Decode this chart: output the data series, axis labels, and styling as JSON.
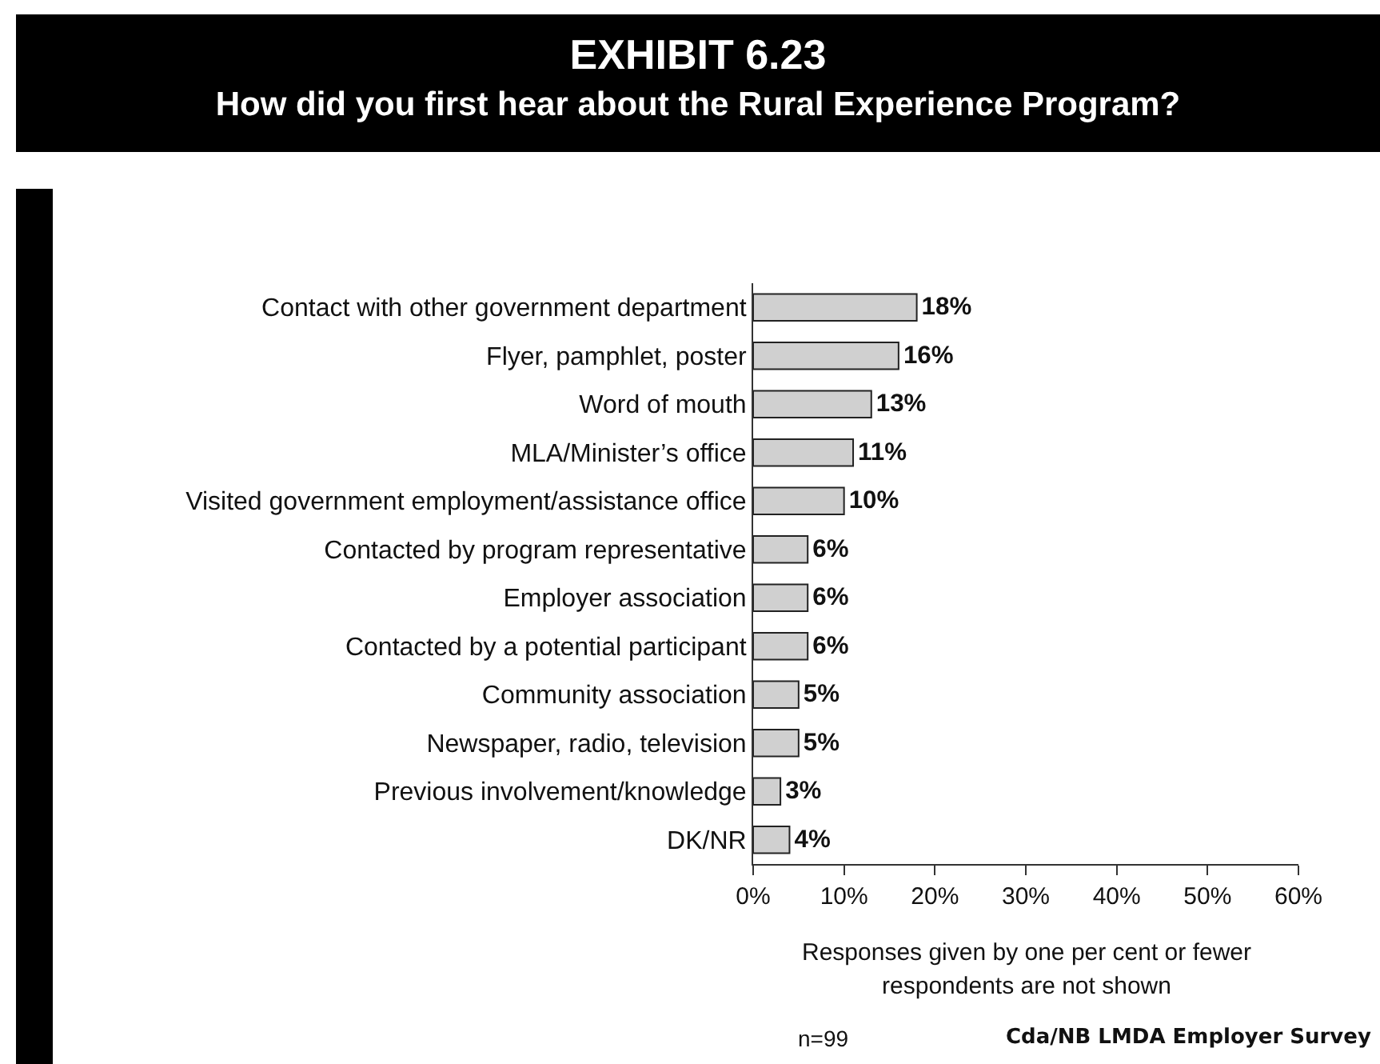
{
  "chart_data": {
    "type": "bar",
    "orientation": "horizontal",
    "title": "EXHIBIT 6.23",
    "subtitle": "How did you first hear about the Rural Experience Program?",
    "categories": [
      "Contact with other government department",
      "Flyer, pamphlet, poster",
      "Word of mouth",
      "MLA/Minister’s office",
      "Visited government employment/assistance office",
      "Contacted by program representative",
      "Employer association",
      "Contacted by a potential participant",
      "Community association",
      "Newspaper, radio, television",
      "Previous involvement/knowledge",
      "DK/NR"
    ],
    "values": [
      18,
      16,
      13,
      11,
      10,
      6,
      6,
      6,
      5,
      5,
      3,
      4
    ],
    "value_labels": [
      "18%",
      "16%",
      "13%",
      "11%",
      "10%",
      "6%",
      "6%",
      "6%",
      "5%",
      "5%",
      "3%",
      "4%"
    ],
    "color": "#d0d0d0",
    "xlim": [
      0,
      60
    ],
    "xticks": [
      {
        "value": 0,
        "label": "0%"
      },
      {
        "value": 10,
        "label": "10%"
      },
      {
        "value": 20,
        "label": "20%"
      },
      {
        "value": 30,
        "label": "30%"
      },
      {
        "value": 40,
        "label": "40%"
      },
      {
        "value": 50,
        "label": "50%"
      },
      {
        "value": 60,
        "label": "60%"
      }
    ],
    "xlabel": "Responses given by one per cent or fewer respondents are not shown",
    "annotations": [
      "n=99",
      "Cda/NB LMDA Employer Survey"
    ],
    "grid": false,
    "legend": false
  }
}
